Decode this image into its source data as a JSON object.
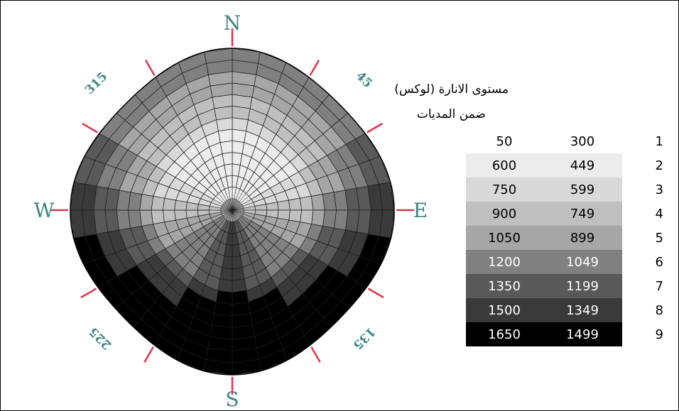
{
  "chart_data": {
    "type": "heatmap",
    "subtype": "polar-sky-illuminance",
    "compass": {
      "cardinals": [
        "N",
        "E",
        "S",
        "W"
      ],
      "degree_labels": [
        "45",
        "135",
        "225",
        "315"
      ]
    },
    "rings": 14,
    "sectors": 36,
    "sector_centers": {
      "N": 3,
      "NE": 3,
      "E": 5,
      "SE": 7,
      "S": 9,
      "SW": 7,
      "W": 5,
      "NW": 3
    },
    "ring_profile": [
      -1,
      -1,
      -1,
      -1,
      -1,
      -1,
      -1,
      0,
      1,
      1,
      2,
      2,
      3,
      3
    ],
    "legend": {
      "title": "مستوى الانارة (لوكس)",
      "subtitle": "ضمن المديات",
      "rows": [
        {
          "index": "1",
          "low": "300",
          "high": "50",
          "color": "#ffffff"
        },
        {
          "index": "2",
          "low": "449",
          "high": "600",
          "color": "#ececec"
        },
        {
          "index": "3",
          "low": "599",
          "high": "750",
          "color": "#d9d9d9"
        },
        {
          "index": "4",
          "low": "749",
          "high": "900",
          "color": "#bfbfbf"
        },
        {
          "index": "5",
          "low": "899",
          "high": "1050",
          "color": "#a6a6a6"
        },
        {
          "index": "6",
          "low": "1049",
          "high": "1200",
          "color": "#808080"
        },
        {
          "index": "7",
          "low": "1199",
          "high": "1350",
          "color": "#595959"
        },
        {
          "index": "8",
          "low": "1349",
          "high": "1500",
          "color": "#3a3a3a"
        },
        {
          "index": "9",
          "low": "1499",
          "high": "1650",
          "color": "#000000"
        }
      ]
    }
  }
}
